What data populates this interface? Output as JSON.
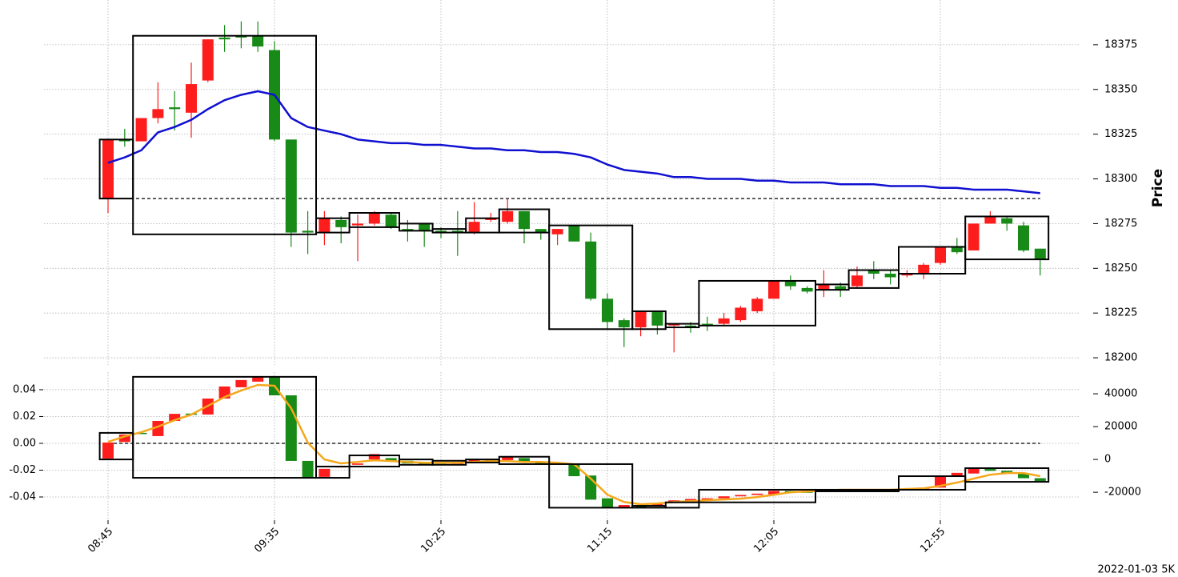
{
  "chart_data": {
    "type": "candlestick",
    "footer": "2022-01-03 5K",
    "up_color": "#fe1d1d",
    "down_color": "#178a17",
    "grid": true,
    "categories": [
      "08:45",
      null,
      null,
      null,
      null,
      null,
      null,
      null,
      null,
      null,
      "09:35",
      null,
      null,
      null,
      null,
      null,
      null,
      null,
      null,
      null,
      "10:25",
      null,
      null,
      null,
      null,
      null,
      null,
      null,
      null,
      null,
      "11:15",
      null,
      null,
      null,
      null,
      null,
      null,
      null,
      null,
      null,
      "12:05",
      null,
      null,
      null,
      null,
      null,
      null,
      null,
      null,
      null,
      "12:55",
      null,
      null,
      null,
      null,
      null,
      null
    ],
    "panels": [
      {
        "ylabel": "Price",
        "ylim": [
          18196,
          18400
        ],
        "yticks": [
          18200,
          18225,
          18250,
          18275,
          18300,
          18325,
          18350,
          18375
        ],
        "hline": 18289,
        "open": [
          18289,
          18322,
          18321,
          18334,
          18340,
          18337,
          18355,
          18379,
          18380,
          18380,
          18372,
          18322,
          18271,
          18270,
          18277,
          18274,
          18275,
          18280,
          18272,
          18275,
          18271,
          18271,
          18270,
          18277,
          18276,
          18282,
          18272,
          18269,
          18274,
          18265,
          18233,
          18221,
          18217,
          18226,
          18218,
          18218,
          18219,
          18219,
          18221,
          18226,
          18233,
          18243,
          18239,
          18238,
          18240,
          18240,
          18249,
          18247,
          18246,
          18247,
          18253,
          18262,
          18260,
          18275,
          18278,
          18274,
          18261
        ],
        "high": [
          18322,
          18328,
          18334,
          18354,
          18349,
          18365,
          18378,
          18386,
          18388,
          18388,
          18377,
          18322,
          18282,
          18282,
          18279,
          18280,
          18282,
          18281,
          18277,
          18275,
          18273,
          18282,
          18287,
          18281,
          18289,
          18282,
          18272,
          18272,
          18274,
          18270,
          18236,
          18222,
          18226,
          18226,
          18219,
          18220,
          18223,
          18225,
          18229,
          18234,
          18243,
          18246,
          18240,
          18249,
          18242,
          18251,
          18254,
          18249,
          18249,
          18253,
          18262,
          18267,
          18275,
          18282,
          18279,
          18276,
          18261
        ],
        "low": [
          18281,
          18318,
          18321,
          18331,
          18327,
          18323,
          18354,
          18371,
          18373,
          18371,
          18321,
          18262,
          18258,
          18263,
          18264,
          18254,
          18274,
          18272,
          18265,
          18262,
          18267,
          18257,
          18269,
          18276,
          18275,
          18264,
          18266,
          18263,
          18265,
          18232,
          18216,
          18206,
          18212,
          18213,
          18203,
          18214,
          18215,
          18218,
          18220,
          18225,
          18233,
          18238,
          18236,
          18234,
          18234,
          18239,
          18244,
          18241,
          18245,
          18244,
          18252,
          18258,
          18260,
          18275,
          18271,
          18259,
          18246
        ],
        "close": [
          18322,
          18321,
          18334,
          18339,
          18339,
          18353,
          18378,
          18378,
          18379,
          18374,
          18322,
          18270,
          18270,
          18278,
          18273,
          18275,
          18281,
          18273,
          18271,
          18271,
          18270,
          18270,
          18276,
          18278,
          18282,
          18272,
          18270,
          18272,
          18265,
          18233,
          18220,
          18217,
          18226,
          18218,
          18219,
          18217,
          18218,
          18222,
          18228,
          18233,
          18243,
          18240,
          18237,
          18241,
          18238,
          18246,
          18247,
          18245,
          18247,
          18252,
          18262,
          18259,
          18275,
          18279,
          18275,
          18260,
          18255
        ],
        "lines": [
          {
            "color": "#1010d0",
            "values": [
              18309,
              18312,
              18316,
              18326,
              18329,
              18333,
              18339,
              18344,
              18347,
              18349,
              18347,
              18334,
              18329,
              18327,
              18325,
              18322,
              18321,
              18320,
              18320,
              18319,
              18319,
              18318,
              18317,
              18317,
              18316,
              18316,
              18315,
              18315,
              18314,
              18312,
              18308,
              18305,
              18304,
              18303,
              18301,
              18301,
              18300,
              18300,
              18300,
              18299,
              18299,
              18298,
              18298,
              18298,
              18297,
              18297,
              18297,
              18296,
              18296,
              18296,
              18295,
              18295,
              18294,
              18294,
              18294,
              18293,
              18292
            ]
          }
        ],
        "boxes": [
          {
            "start": 0,
            "end": 1,
            "low": 18289,
            "high": 18322
          },
          {
            "start": 2,
            "end": 12,
            "low": 18269,
            "high": 18380
          },
          {
            "start": 13,
            "end": 14,
            "low": 18270,
            "high": 18278
          },
          {
            "start": 15,
            "end": 17,
            "low": 18273,
            "high": 18281
          },
          {
            "start": 18,
            "end": 19,
            "low": 18271,
            "high": 18275
          },
          {
            "start": 20,
            "end": 21,
            "low": 18270,
            "high": 18272
          },
          {
            "start": 22,
            "end": 23,
            "low": 18270,
            "high": 18278
          },
          {
            "start": 24,
            "end": 26,
            "low": 18270,
            "high": 18283
          },
          {
            "start": 27,
            "end": 31,
            "low": 18216,
            "high": 18274
          },
          {
            "start": 32,
            "end": 33,
            "low": 18216,
            "high": 18226
          },
          {
            "start": 34,
            "end": 35,
            "low": 18217,
            "high": 18219
          },
          {
            "start": 36,
            "end": 42,
            "low": 18218,
            "high": 18243
          },
          {
            "start": 43,
            "end": 44,
            "low": 18238,
            "high": 18241
          },
          {
            "start": 45,
            "end": 47,
            "low": 18239,
            "high": 18249
          },
          {
            "start": 48,
            "end": 51,
            "low": 18247,
            "high": 18262
          },
          {
            "start": 52,
            "end": 56,
            "low": 18255,
            "high": 18279
          }
        ]
      },
      {
        "ylim": [
          -0.0573,
          0.0531
        ],
        "yticks": [
          -0.04,
          -0.02,
          {
            "value": 0,
            "label": "0.00"
          },
          0.02,
          0.04
        ],
        "y2lim": [
          -37000,
          53200
        ],
        "y2ticks": [
          -20000,
          0,
          20000,
          40000
        ],
        "hline": 0,
        "open": [
          -0.0113,
          0.001,
          0.0078,
          0.0054,
          0.0167,
          0.0222,
          0.0215,
          0.0334,
          0.0418,
          0.046,
          0.0496,
          0.0358,
          -0.0131,
          -0.025,
          -0.018,
          -0.016,
          -0.012,
          -0.011,
          -0.013,
          -0.014,
          -0.0145,
          -0.015,
          -0.014,
          -0.013,
          -0.0125,
          -0.011,
          -0.014,
          -0.0155,
          -0.016,
          -0.024,
          -0.041,
          -0.048,
          -0.0465,
          -0.046,
          -0.0445,
          -0.043,
          -0.042,
          -0.041,
          -0.0395,
          -0.0385,
          -0.038,
          -0.0355,
          -0.036,
          -0.036,
          -0.035,
          -0.0355,
          -0.035,
          -0.0355,
          -0.035,
          -0.034,
          -0.033,
          -0.0245,
          -0.0225,
          -0.019,
          -0.0205,
          -0.0225,
          -0.026
        ],
        "close": [
          0.0006,
          0.0066,
          0.0072,
          0.0167,
          0.022,
          0.0218,
          0.0334,
          0.0424,
          0.0472,
          0.0496,
          0.0358,
          -0.0131,
          -0.0257,
          -0.019,
          -0.017,
          -0.015,
          -0.008,
          -0.013,
          -0.015,
          -0.0155,
          -0.015,
          -0.0145,
          -0.012,
          -0.012,
          -0.01,
          -0.014,
          -0.015,
          -0.0145,
          -0.0245,
          -0.042,
          -0.048,
          -0.046,
          -0.0475,
          -0.0445,
          -0.0425,
          -0.0415,
          -0.041,
          -0.0395,
          -0.0385,
          -0.0375,
          -0.0355,
          -0.036,
          -0.0365,
          -0.035,
          -0.0355,
          -0.035,
          -0.0355,
          -0.035,
          -0.034,
          -0.033,
          -0.0245,
          -0.022,
          -0.019,
          -0.0205,
          -0.0225,
          -0.026,
          -0.0285
        ],
        "lines": [
          {
            "color": "#f5a81c",
            "axis": "y2",
            "values": [
              10700,
              14100,
              16600,
              20000,
              23900,
              27300,
              32700,
              38000,
              42000,
              45400,
              44900,
              31200,
              10200,
              0,
              -2400,
              -1500,
              -500,
              -1000,
              -1500,
              -2000,
              -2000,
              -2000,
              -1500,
              -1000,
              -1000,
              -1500,
              -1500,
              -2000,
              -2900,
              -11700,
              -21500,
              -25900,
              -27300,
              -26800,
              -25900,
              -25400,
              -24900,
              -24400,
              -23900,
              -22900,
              -21500,
              -20000,
              -19500,
              -19000,
              -18500,
              -18500,
              -18500,
              -18500,
              -18000,
              -17600,
              -16100,
              -14100,
              -11700,
              -9300,
              -8300,
              -8300,
              -10200
            ]
          }
        ],
        "boxes": [
          {
            "start": 0,
            "end": 1,
            "low": -0.012,
            "high": 0.0078
          },
          {
            "start": 2,
            "end": 12,
            "low": -0.0257,
            "high": 0.0496
          },
          {
            "start": 13,
            "end": 14,
            "low": -0.0257,
            "high": -0.0173
          },
          {
            "start": 15,
            "end": 17,
            "low": -0.0173,
            "high": -0.009
          },
          {
            "start": 18,
            "end": 19,
            "low": -0.016,
            "high": -0.012
          },
          {
            "start": 20,
            "end": 21,
            "low": -0.016,
            "high": -0.013
          },
          {
            "start": 22,
            "end": 23,
            "low": -0.0143,
            "high": -0.012
          },
          {
            "start": 24,
            "end": 26,
            "low": -0.0155,
            "high": -0.01
          },
          {
            "start": 27,
            "end": 31,
            "low": -0.048,
            "high": -0.0155
          },
          {
            "start": 32,
            "end": 33,
            "low": -0.048,
            "high": -0.0466
          },
          {
            "start": 34,
            "end": 35,
            "low": -0.048,
            "high": -0.044
          },
          {
            "start": 36,
            "end": 42,
            "low": -0.044,
            "high": -0.0346
          },
          {
            "start": 43,
            "end": 44,
            "low": -0.0358,
            "high": -0.0346
          },
          {
            "start": 45,
            "end": 47,
            "low": -0.0358,
            "high": -0.0346
          },
          {
            "start": 48,
            "end": 51,
            "low": -0.0346,
            "high": -0.0245
          },
          {
            "start": 52,
            "end": 56,
            "low": -0.0287,
            "high": -0.0185
          }
        ]
      }
    ]
  }
}
